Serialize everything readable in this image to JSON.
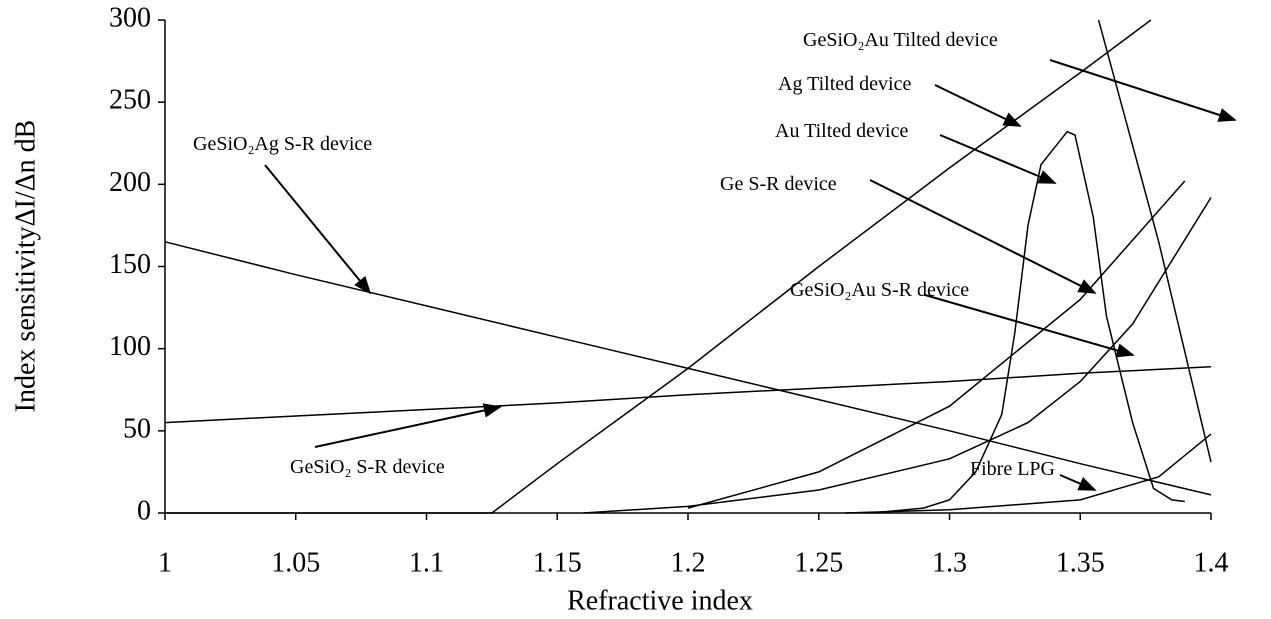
{
  "chart_data": {
    "type": "line",
    "xlabel": "Refractive index",
    "ylabel": "Index sensitivityΔI/Δn dB",
    "xlim": [
      1,
      1.4
    ],
    "xticks": [
      1,
      1.05,
      1.1,
      1.15,
      1.2,
      1.25,
      1.3,
      1.35,
      1.4
    ],
    "ylim": [
      0,
      300
    ],
    "yticks": [
      0,
      50,
      100,
      150,
      200,
      250,
      300
    ],
    "grid": false,
    "series": [
      {
        "name": "GeSiO₂Ag S-R device",
        "color": "#000000",
        "x": [
          1,
          1.05,
          1.1,
          1.15,
          1.2,
          1.25,
          1.3,
          1.35,
          1.4
        ],
        "values": [
          165,
          145,
          126,
          107,
          88,
          69,
          50,
          30,
          11
        ]
      },
      {
        "name": "GeSiO₂  S-R device",
        "color": "#000000",
        "x": [
          1,
          1.05,
          1.1,
          1.15,
          1.2,
          1.25,
          1.3,
          1.35,
          1.4
        ],
        "values": [
          55,
          59,
          63,
          67,
          72,
          76,
          80,
          85,
          89
        ]
      },
      {
        "name": "Ag Tilted device",
        "color": "#000000",
        "x": [
          1,
          1.125,
          1.15,
          1.2,
          1.25,
          1.3,
          1.35,
          1.377
        ],
        "values": [
          0,
          0,
          30,
          88,
          150,
          210,
          268,
          300
        ]
      },
      {
        "name": "GeSiO₂Au Tilted device",
        "color": "#000000",
        "x": [
          1.357,
          1.38,
          1.4
        ],
        "values": [
          300,
          165,
          31
        ]
      },
      {
        "name": "Au Tilted device",
        "color": "#000000",
        "x": [
          1.27,
          1.29,
          1.3,
          1.31,
          1.32,
          1.325,
          1.33,
          1.335,
          1.34,
          1.345,
          1.348,
          1.355,
          1.36,
          1.37,
          1.378,
          1.385,
          1.39
        ],
        "values": [
          0,
          3,
          8,
          25,
          60,
          110,
          175,
          212,
          222,
          232,
          230,
          180,
          120,
          55,
          15,
          8,
          7
        ]
      },
      {
        "name": "Ge S-R device",
        "color": "#000000",
        "x": [
          1.2,
          1.25,
          1.3,
          1.35,
          1.39
        ],
        "values": [
          3,
          25,
          65,
          130,
          202
        ]
      },
      {
        "name": "GeSiO₂Au S-R device",
        "color": "#000000",
        "x": [
          1.16,
          1.2,
          1.25,
          1.3,
          1.33,
          1.35,
          1.37,
          1.4
        ],
        "values": [
          0,
          4,
          14,
          33,
          55,
          80,
          115,
          192
        ]
      },
      {
        "name": "Fibre LPG",
        "color": "#000000",
        "x": [
          1.26,
          1.3,
          1.35,
          1.38,
          1.4
        ],
        "values": [
          0,
          2,
          8,
          22,
          48
        ]
      }
    ]
  }
}
